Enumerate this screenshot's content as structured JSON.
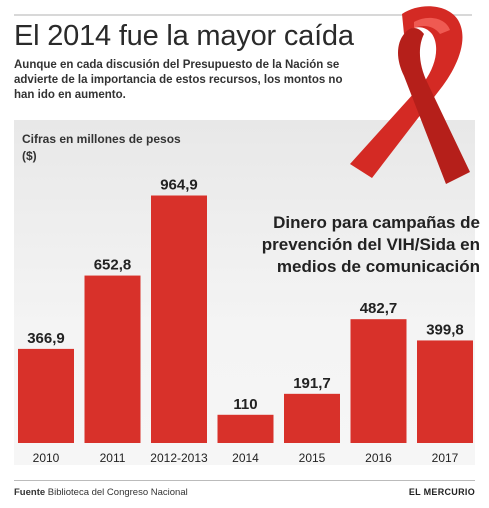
{
  "title": "El 2014 fue la mayor caída",
  "subtitle": "Aunque en cada discusión del Presupuesto de la Nación se advierte de la importancia de estos recursos, los montos no han ido en aumento.",
  "unit_label": "Cifras en millones de pesos ($)",
  "chart_heading": "Dinero para campañas de prevención del VIH/Sida en medios de comunicación",
  "footer": {
    "source_label": "Fuente",
    "source_text": "Biblioteca del Congreso Nacional",
    "brand": "EL MERCURIO"
  },
  "colors": {
    "bar": "#d8312a",
    "ribbon": "#d42a24",
    "panel": "#ececec"
  },
  "decoration": "red-awareness-ribbon-icon",
  "chart_data": {
    "type": "bar",
    "categories": [
      "2010",
      "2011",
      "2012-2013",
      "2014",
      "2015",
      "2016",
      "2017"
    ],
    "values": [
      366.9,
      652.8,
      964.9,
      110,
      191.7,
      482.7,
      399.8
    ],
    "value_labels": [
      "366,9",
      "652,8",
      "964,9",
      "110",
      "191,7",
      "482,7",
      "399,8"
    ],
    "title": "Dinero para campañas de prevención del VIH/Sida en medios de comunicación",
    "ylabel": "Cifras en millones de pesos ($)",
    "ylim": [
      0,
      1000
    ],
    "grid": false,
    "legend": "none"
  }
}
